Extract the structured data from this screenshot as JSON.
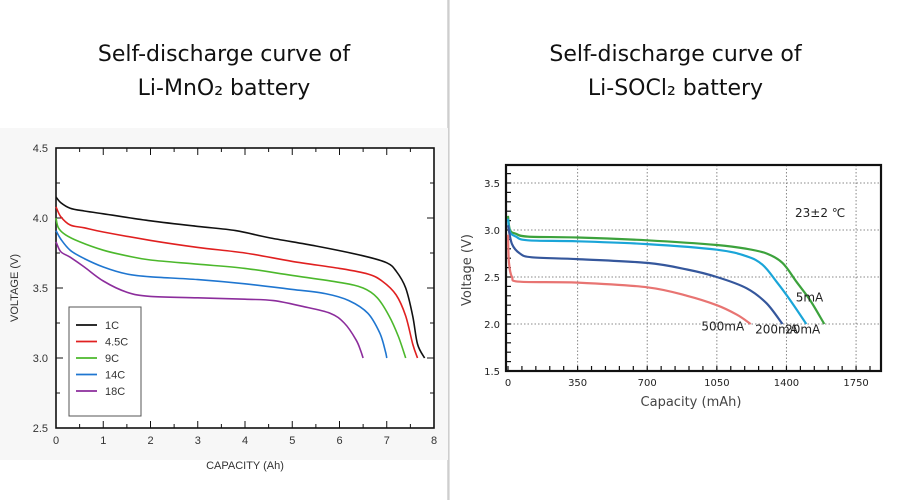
{
  "left": {
    "title_line1": "Self-discharge curve of",
    "title_line2": "Li-MnO₂ battery"
  },
  "right": {
    "title_line1": "Self-discharge curve of",
    "title_line2": "Li-SOCl₂ battery"
  },
  "chart_data": [
    {
      "type": "line",
      "title": "Self-discharge curve of Li-MnO₂ battery",
      "xlabel": "CAPACITY (Ah)",
      "ylabel": "VOLTAGE (V)",
      "xlim": [
        0,
        8
      ],
      "ylim": [
        2.5,
        4.5
      ],
      "xticks": [
        "0",
        "1",
        "2",
        "3",
        "4",
        "5",
        "6",
        "7",
        "8"
      ],
      "yticks": [
        "2.5",
        "3.0",
        "3.5",
        "4.0",
        "4.5"
      ],
      "grid": false,
      "legend_position": "bottom-left",
      "series": [
        {
          "name": "1C",
          "color": "#111111",
          "points": [
            [
              0,
              4.15
            ],
            [
              0.1,
              4.11
            ],
            [
              0.3,
              4.07
            ],
            [
              0.6,
              4.05
            ],
            [
              1,
              4.03
            ],
            [
              2,
              3.98
            ],
            [
              3,
              3.94
            ],
            [
              3.8,
              3.91
            ],
            [
              4.5,
              3.86
            ],
            [
              5.5,
              3.8
            ],
            [
              6.5,
              3.73
            ],
            [
              7,
              3.68
            ],
            [
              7.2,
              3.62
            ],
            [
              7.4,
              3.5
            ],
            [
              7.55,
              3.3
            ],
            [
              7.65,
              3.1
            ],
            [
              7.8,
              3.0
            ]
          ]
        },
        {
          "name": "4.5C",
          "color": "#e02020",
          "points": [
            [
              0,
              4.08
            ],
            [
              0.1,
              4.01
            ],
            [
              0.3,
              3.95
            ],
            [
              0.6,
              3.93
            ],
            [
              1,
              3.9
            ],
            [
              2,
              3.84
            ],
            [
              3,
              3.79
            ],
            [
              4,
              3.75
            ],
            [
              5,
              3.69
            ],
            [
              6,
              3.64
            ],
            [
              6.6,
              3.6
            ],
            [
              6.9,
              3.55
            ],
            [
              7.2,
              3.45
            ],
            [
              7.4,
              3.3
            ],
            [
              7.55,
              3.1
            ],
            [
              7.65,
              3.0
            ]
          ]
        },
        {
          "name": "9C",
          "color": "#4cb82c",
          "points": [
            [
              0,
              4.0
            ],
            [
              0.05,
              3.93
            ],
            [
              0.2,
              3.88
            ],
            [
              0.5,
              3.83
            ],
            [
              1,
              3.77
            ],
            [
              1.5,
              3.73
            ],
            [
              2,
              3.7
            ],
            [
              3,
              3.67
            ],
            [
              4,
              3.64
            ],
            [
              5,
              3.59
            ],
            [
              6,
              3.54
            ],
            [
              6.5,
              3.5
            ],
            [
              6.8,
              3.43
            ],
            [
              7.05,
              3.3
            ],
            [
              7.25,
              3.15
            ],
            [
              7.4,
              3.0
            ]
          ]
        },
        {
          "name": "14C",
          "color": "#1f76d0",
          "points": [
            [
              0,
              3.91
            ],
            [
              0.1,
              3.85
            ],
            [
              0.3,
              3.77
            ],
            [
              0.6,
              3.71
            ],
            [
              1,
              3.65
            ],
            [
              1.5,
              3.6
            ],
            [
              2,
              3.58
            ],
            [
              3,
              3.56
            ],
            [
              4,
              3.53
            ],
            [
              5,
              3.49
            ],
            [
              5.7,
              3.46
            ],
            [
              6.2,
              3.41
            ],
            [
              6.6,
              3.32
            ],
            [
              6.85,
              3.18
            ],
            [
              6.97,
              3.05
            ],
            [
              7.0,
              3.0
            ]
          ]
        },
        {
          "name": "18C",
          "color": "#8c2d9c",
          "points": [
            [
              0,
              3.83
            ],
            [
              0.1,
              3.76
            ],
            [
              0.3,
              3.72
            ],
            [
              0.6,
              3.65
            ],
            [
              1,
              3.55
            ],
            [
              1.5,
              3.47
            ],
            [
              2,
              3.44
            ],
            [
              3,
              3.43
            ],
            [
              4,
              3.42
            ],
            [
              4.6,
              3.41
            ],
            [
              5.2,
              3.37
            ],
            [
              5.8,
              3.32
            ],
            [
              6.1,
              3.25
            ],
            [
              6.35,
              3.13
            ],
            [
              6.45,
              3.05
            ],
            [
              6.5,
              3.0
            ]
          ]
        }
      ]
    },
    {
      "type": "line",
      "title": "Self-discharge curve of Li-SOCl₂ battery",
      "xlabel": "Capacity (mAh)",
      "ylabel": "Voltage (V)",
      "xlim": [
        0,
        1850
      ],
      "ylim": [
        1.5,
        3.7
      ],
      "xticks": [
        "0",
        "350",
        "700",
        "1050",
        "1400",
        "1750"
      ],
      "yticks": [
        "1.5",
        "2.0",
        "2.5",
        "3.0",
        "3.5"
      ],
      "grid": true,
      "annotation": "23±2 ℃",
      "series": [
        {
          "name": "5mA",
          "color": "#3ca23c",
          "points": [
            [
              0,
              3.15
            ],
            [
              10,
              3.0
            ],
            [
              40,
              2.96
            ],
            [
              100,
              2.93
            ],
            [
              350,
              2.92
            ],
            [
              700,
              2.89
            ],
            [
              1050,
              2.84
            ],
            [
              1200,
              2.8
            ],
            [
              1300,
              2.75
            ],
            [
              1380,
              2.65
            ],
            [
              1450,
              2.45
            ],
            [
              1520,
              2.25
            ],
            [
              1590,
              2.0
            ]
          ]
        },
        {
          "name": "20mA",
          "color": "#1aa5d8",
          "points": [
            [
              0,
              3.12
            ],
            [
              10,
              2.98
            ],
            [
              40,
              2.93
            ],
            [
              100,
              2.89
            ],
            [
              350,
              2.88
            ],
            [
              700,
              2.85
            ],
            [
              1050,
              2.79
            ],
            [
              1200,
              2.72
            ],
            [
              1280,
              2.63
            ],
            [
              1350,
              2.45
            ],
            [
              1420,
              2.25
            ],
            [
              1500,
              2.0
            ]
          ]
        },
        {
          "name": "200mA",
          "color": "#35579c",
          "points": [
            [
              0,
              3.05
            ],
            [
              20,
              2.85
            ],
            [
              60,
              2.75
            ],
            [
              120,
              2.71
            ],
            [
              350,
              2.69
            ],
            [
              700,
              2.65
            ],
            [
              900,
              2.58
            ],
            [
              1050,
              2.5
            ],
            [
              1200,
              2.38
            ],
            [
              1300,
              2.22
            ],
            [
              1380,
              2.0
            ]
          ]
        },
        {
          "name": "500mA",
          "color": "#e87472",
          "points": [
            [
              0,
              2.95
            ],
            [
              5,
              2.65
            ],
            [
              20,
              2.5
            ],
            [
              60,
              2.45
            ],
            [
              350,
              2.44
            ],
            [
              700,
              2.39
            ],
            [
              900,
              2.3
            ],
            [
              1050,
              2.2
            ],
            [
              1150,
              2.1
            ],
            [
              1220,
              2.0
            ]
          ]
        }
      ]
    }
  ]
}
